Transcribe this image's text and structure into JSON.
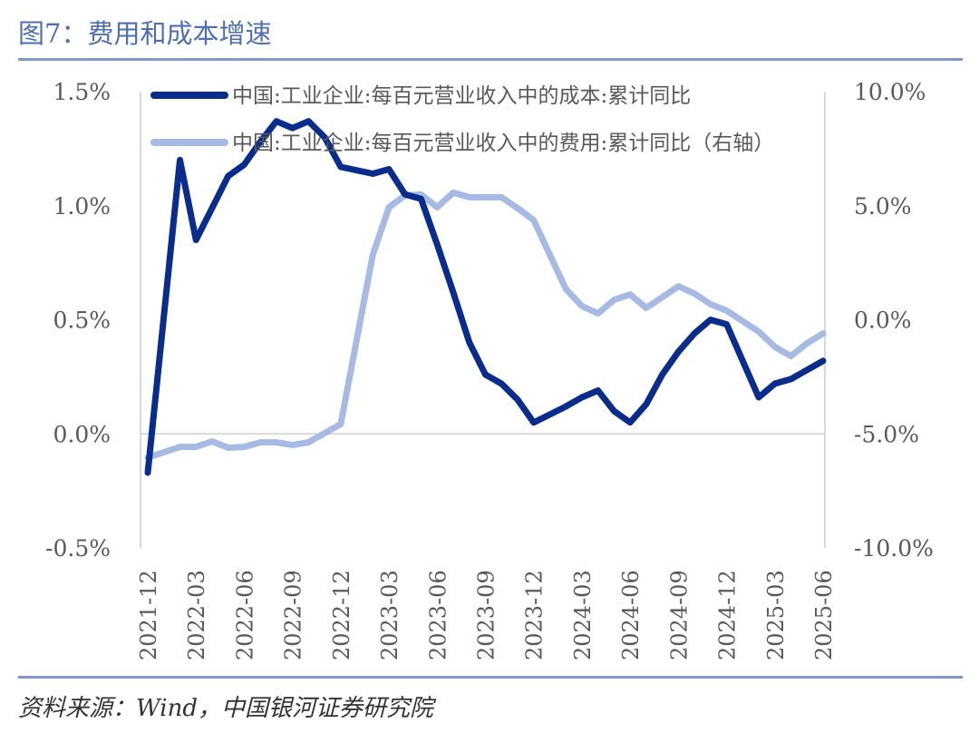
{
  "title": "图7：费用和成本增速",
  "source": "资料来源：Wind，中国银河证券研究院",
  "chart_data": {
    "type": "line",
    "title": "",
    "grid": false,
    "legend_position": "top",
    "categories": [
      "2021-12",
      "2022-02",
      "2022-03",
      "2022-04",
      "2022-05",
      "2022-06",
      "2022-07",
      "2022-08",
      "2022-09",
      "2022-10",
      "2022-11",
      "2022-12",
      "2023-02",
      "2023-03",
      "2023-04",
      "2023-05",
      "2023-06",
      "2023-07",
      "2023-08",
      "2023-09",
      "2023-10",
      "2023-11",
      "2023-12",
      "2024-02",
      "2024-03",
      "2024-04",
      "2024-05",
      "2024-06",
      "2024-07",
      "2024-08",
      "2024-09",
      "2024-10",
      "2024-11",
      "2024-12",
      "2025-02",
      "2025-03",
      "2025-04",
      "2025-05",
      "2025-06"
    ],
    "x_tick_labels": [
      "2021-12",
      "2022-03",
      "2022-06",
      "2022-09",
      "2022-12",
      "2023-03",
      "2023-06",
      "2023-09",
      "2023-12",
      "2024-03",
      "2024-06",
      "2024-09",
      "2024-12",
      "2025-03",
      "2025-06"
    ],
    "y_left": {
      "range": [
        -0.5,
        1.5
      ],
      "ticks": [
        "-0.5%",
        "0.0%",
        "0.5%",
        "1.0%",
        "1.5%"
      ]
    },
    "y_right": {
      "range": [
        -10,
        10
      ],
      "ticks": [
        "-10.0%",
        "-5.0%",
        "0.0%",
        "5.0%",
        "10.0%"
      ]
    },
    "series": [
      {
        "name": "中国:工业企业:每百元营业收入中的成本:累计同比",
        "axis": "left",
        "color": "#0a2d8c",
        "values": [
          -0.17,
          1.2,
          0.85,
          0.99,
          1.13,
          1.18,
          1.28,
          1.37,
          1.34,
          1.37,
          1.3,
          1.17,
          1.14,
          1.16,
          1.05,
          1.03,
          0.83,
          0.62,
          0.4,
          0.26,
          0.22,
          0.15,
          0.05,
          0.12,
          0.16,
          0.19,
          0.1,
          0.05,
          0.13,
          0.26,
          0.36,
          0.44,
          0.5,
          0.48,
          0.16,
          0.22,
          0.24,
          0.28,
          0.32
        ]
      },
      {
        "name": "中国:工业企业:每百元营业收入中的费用:累计同比（右轴）",
        "axis": "right",
        "color": "#a6bae3",
        "values": [
          -6.04,
          -5.57,
          -5.57,
          -5.33,
          -5.61,
          -5.57,
          -5.37,
          -5.37,
          -5.49,
          -5.37,
          -4.97,
          -4.57,
          2.86,
          4.93,
          5.45,
          5.49,
          4.93,
          5.57,
          5.37,
          5.37,
          5.37,
          4.89,
          4.37,
          1.35,
          0.6,
          0.28,
          0.87,
          1.11,
          0.52,
          0.99,
          1.47,
          1.15,
          0.68,
          0.4,
          -0.52,
          -1.19,
          -1.59,
          -1.03,
          -0.6
        ]
      }
    ]
  }
}
